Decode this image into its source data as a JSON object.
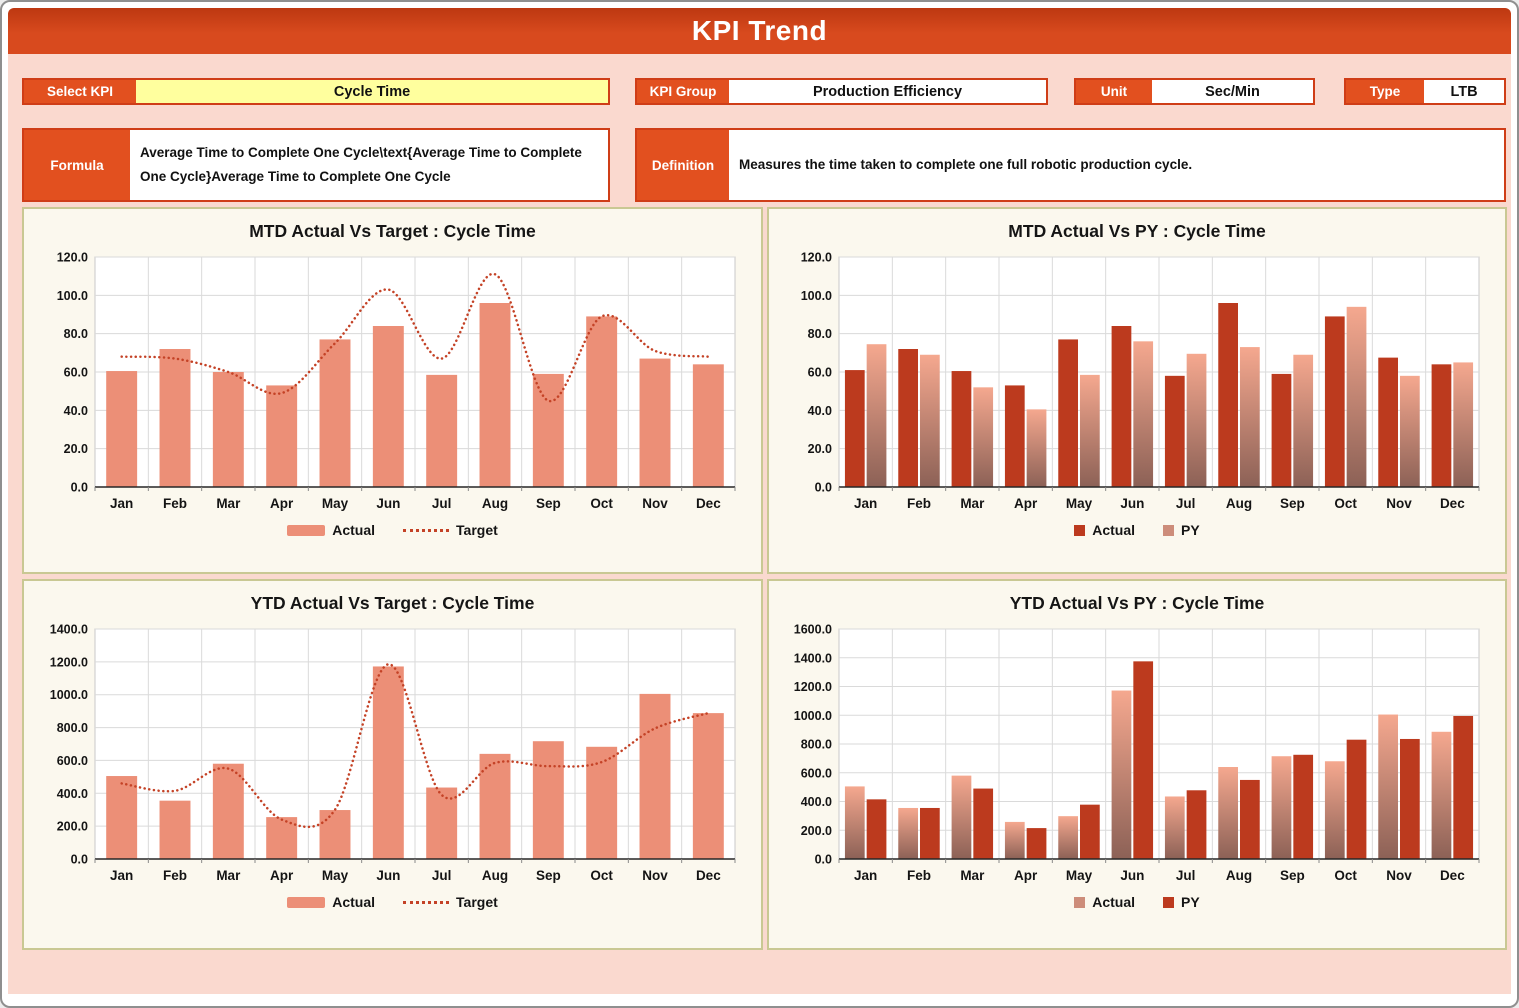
{
  "header": {
    "title": "KPI Trend"
  },
  "controls": {
    "select_kpi": {
      "label": "Select KPI",
      "value": "Cycle Time"
    },
    "kpi_group": {
      "label": "KPI Group",
      "value": "Production Efficiency"
    },
    "unit": {
      "label": "Unit",
      "value": "Sec/Min"
    },
    "type": {
      "label": "Type",
      "value": "LTB"
    },
    "formula": {
      "label": "Formula",
      "value": "Average Time to Complete One Cycle\\text{Average Time to Complete One Cycle}Average Time to Complete One Cycle"
    },
    "definition": {
      "label": "Definition",
      "value": "Measures the time taken to complete one full robotic production cycle."
    }
  },
  "colors": {
    "page_pink": "#fad9cf",
    "label_orange": "#e2501f",
    "border_red": "#cf3d17",
    "kpi_yellow": "#ffff9e",
    "card_bg": "#fbf8ee",
    "card_border": "#c9c893",
    "bar_salmon": "#ec8f77",
    "bar_dark": "#bc3a1e",
    "py_gradient_top": "#f5a88f",
    "py_gradient_bottom": "#8c6156",
    "py_legend": "#cd8d7a",
    "target_line": "#c44226",
    "grid": "#dadada"
  },
  "chart_data": [
    {
      "type": "bar",
      "title": "MTD Actual Vs Target : Cycle Time",
      "categories": [
        "Jan",
        "Feb",
        "Mar",
        "Apr",
        "May",
        "Jun",
        "Jul",
        "Aug",
        "Sep",
        "Oct",
        "Nov",
        "Dec"
      ],
      "series": [
        {
          "name": "Actual",
          "style": "bar-salmon",
          "values": [
            60.5,
            72,
            60,
            53,
            77,
            84,
            58.5,
            96,
            59,
            89,
            67,
            64
          ]
        },
        {
          "name": "Target",
          "style": "dotted-line",
          "values": [
            68,
            67,
            60,
            49,
            75,
            103,
            67,
            111,
            45,
            89,
            71,
            68
          ]
        }
      ],
      "ylim": [
        0,
        120
      ],
      "ystep": 20,
      "ytick_labels": [
        "0.0",
        "20.0",
        "40.0",
        "60.0",
        "80.0",
        "100.0",
        "120.0"
      ],
      "grid": true,
      "legend_position": "bottom"
    },
    {
      "type": "bar",
      "title": "MTD Actual Vs PY : Cycle Time",
      "categories": [
        "Jan",
        "Feb",
        "Mar",
        "Apr",
        "May",
        "Jun",
        "Jul",
        "Aug",
        "Sep",
        "Oct",
        "Nov",
        "Dec"
      ],
      "series": [
        {
          "name": "Actual",
          "style": "bar-dark",
          "values": [
            61,
            72,
            60.5,
            53,
            77,
            84,
            58,
            96,
            59,
            89,
            67.5,
            64
          ]
        },
        {
          "name": "PY",
          "style": "bar-gradient",
          "values": [
            74.5,
            69,
            52,
            40.5,
            58.5,
            76,
            69.5,
            73,
            69,
            94,
            58,
            65
          ]
        }
      ],
      "ylim": [
        0,
        120
      ],
      "ystep": 20,
      "ytick_labels": [
        "0.0",
        "20.0",
        "40.0",
        "60.0",
        "80.0",
        "100.0",
        "120.0"
      ],
      "grid": true,
      "legend_position": "bottom"
    },
    {
      "type": "bar",
      "title": "YTD Actual Vs Target : Cycle Time",
      "categories": [
        "Jan",
        "Feb",
        "Mar",
        "Apr",
        "May",
        "Jun",
        "Jul",
        "Aug",
        "Sep",
        "Oct",
        "Nov",
        "Dec"
      ],
      "series": [
        {
          "name": "Actual",
          "style": "bar-salmon",
          "values": [
            505,
            355,
            580,
            255,
            298,
            1172,
            435,
            640,
            717,
            683,
            1005,
            888
          ]
        },
        {
          "name": "Target",
          "style": "dotted-line",
          "values": [
            460,
            415,
            550,
            240,
            300,
            1185,
            390,
            585,
            565,
            590,
            795,
            888
          ]
        }
      ],
      "ylim": [
        0,
        1400
      ],
      "ystep": 200,
      "ytick_labels": [
        "0.0",
        "200.0",
        "400.0",
        "600.0",
        "800.0",
        "1000.0",
        "1200.0",
        "1400.0"
      ],
      "grid": true,
      "legend_position": "bottom"
    },
    {
      "type": "bar",
      "title": "YTD Actual Vs PY : Cycle Time",
      "categories": [
        "Jan",
        "Feb",
        "Mar",
        "Apr",
        "May",
        "Jun",
        "Jul",
        "Aug",
        "Sep",
        "Oct",
        "Nov",
        "Dec"
      ],
      "series": [
        {
          "name": "Actual",
          "style": "bar-gradient",
          "values": [
            505,
            355,
            580,
            258,
            298,
            1172,
            435,
            640,
            715,
            680,
            1005,
            885
          ]
        },
        {
          "name": "PY",
          "style": "bar-dark",
          "values": [
            415,
            355,
            490,
            215,
            378,
            1375,
            478,
            550,
            725,
            830,
            835,
            995
          ]
        }
      ],
      "ylim": [
        0,
        1600
      ],
      "ystep": 200,
      "ytick_labels": [
        "0.0",
        "200.0",
        "400.0",
        "600.0",
        "800.0",
        "1000.0",
        "1200.0",
        "1400.0",
        "1600.0"
      ],
      "grid": true,
      "legend_position": "bottom"
    }
  ]
}
